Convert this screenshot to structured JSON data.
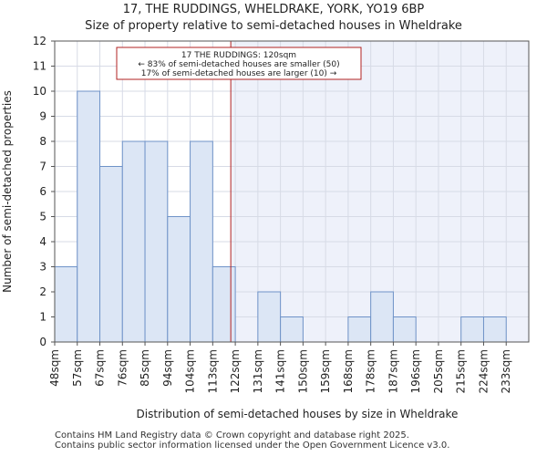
{
  "chart_data": {
    "type": "bar",
    "title": "17, THE RUDDINGS, WHELDRAKE, YORK, YO19 6BP",
    "subtitle": "Size of property relative to semi-detached houses in Wheldrake",
    "xlabel": "Distribution of semi-detached houses by size in Wheldrake",
    "ylabel": "Number of semi-detached properties",
    "categories": [
      "48sqm",
      "57sqm",
      "67sqm",
      "76sqm",
      "85sqm",
      "94sqm",
      "104sqm",
      "113sqm",
      "122sqm",
      "131sqm",
      "141sqm",
      "150sqm",
      "159sqm",
      "168sqm",
      "178sqm",
      "187sqm",
      "196sqm",
      "205sqm",
      "215sqm",
      "224sqm",
      "233sqm"
    ],
    "values": [
      3,
      10,
      7,
      8,
      8,
      5,
      8,
      3,
      0,
      2,
      1,
      0,
      0,
      1,
      2,
      1,
      0,
      0,
      1,
      1,
      0
    ],
    "ylim": [
      0,
      12
    ],
    "yticks": [
      0,
      1,
      2,
      3,
      4,
      5,
      6,
      7,
      8,
      9,
      10,
      11,
      12
    ],
    "grid": true,
    "marker": {
      "label": "17 THE RUDDINGS: 120sqm",
      "value_bin": 7.8,
      "smaller_text": "← 83% of semi-detached houses are smaller (50)",
      "larger_text": "17% of semi-detached houses are larger (10) →"
    },
    "colors": {
      "bar_fill": "#dce6f5",
      "bar_stroke": "#6f93c8",
      "marker": "#b22222",
      "highlight_region": "#eef1fa",
      "grid": "#d7dbe6"
    }
  },
  "footer": {
    "line1": "Contains HM Land Registry data © Crown copyright and database right 2025.",
    "line2": "Contains public sector information licensed under the Open Government Licence v3.0."
  }
}
